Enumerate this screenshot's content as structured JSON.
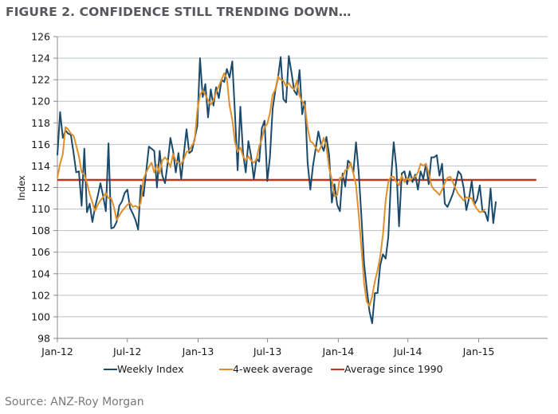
{
  "title": "FIGURE 2. CONFIDENCE STILL TRENDING DOWN…",
  "source": "Source: ANZ-Roy Morgan",
  "colors": {
    "weekly": "#1b4a6b",
    "avg4": "#e0902a",
    "avg1990": "#c0361f",
    "grid": "#b9c3c9",
    "axis": "#888888"
  },
  "chart_data": {
    "type": "line",
    "title": "FIGURE 2. CONFIDENCE STILL TRENDING DOWN…",
    "xlabel": "",
    "ylabel": "Index",
    "ylim": [
      98,
      126
    ],
    "yticks": [
      98,
      100,
      102,
      104,
      106,
      108,
      110,
      112,
      114,
      116,
      118,
      120,
      122,
      124,
      126
    ],
    "xticks": [
      {
        "label": "Jan-12",
        "week": 0
      },
      {
        "label": "Jul-12",
        "week": 26
      },
      {
        "label": "Jan-13",
        "week": 52.3
      },
      {
        "label": "Jul-13",
        "week": 78.1
      },
      {
        "label": "Jan-14",
        "week": 104.4
      },
      {
        "label": "Jul-14",
        "week": 130.3
      },
      {
        "label": "Jan-15",
        "week": 156.6
      }
    ],
    "xlim_weeks": [
      0,
      182
    ],
    "grid": "horizontal",
    "legend_position": "bottom",
    "series": [
      {
        "name": "Weekly Index",
        "key": "weekly",
        "values": [
          115.0,
          119.0,
          116.6,
          117.3,
          117.0,
          116.9,
          115.2,
          113.4,
          113.5,
          110.3,
          115.6,
          109.7,
          110.5,
          108.8,
          110.2,
          111.2,
          112.4,
          111.2,
          109.8,
          116.1,
          108.2,
          108.3,
          108.8,
          110.3,
          110.7,
          111.5,
          111.8,
          110.1,
          109.6,
          109.0,
          108.1,
          112.2,
          111.2,
          113.5,
          115.8,
          115.6,
          115.4,
          112.0,
          115.4,
          113.1,
          112.4,
          114.3,
          116.6,
          115.4,
          113.4,
          115.2,
          112.8,
          115.1,
          117.4,
          115.2,
          115.4,
          116.5,
          117.7,
          124.0,
          120.4,
          121.6,
          118.5,
          121.1,
          119.6,
          121.3,
          120.3,
          122.0,
          121.8,
          123.0,
          122.2,
          123.7,
          118.8,
          113.6,
          119.5,
          115.2,
          113.4,
          116.3,
          114.9,
          112.8,
          114.7,
          114.4,
          117.5,
          118.2,
          112.6,
          114.8,
          119.3,
          121.0,
          122.2,
          124.1,
          120.2,
          119.9,
          124.2,
          122.7,
          121.0,
          120.6,
          122.9,
          118.8,
          120.0,
          114.3,
          111.8,
          114.0,
          115.6,
          117.2,
          116.0,
          115.4,
          116.7,
          115.0,
          110.6,
          112.3,
          110.4,
          109.8,
          113.3,
          112.1,
          114.5,
          114.2,
          113.4,
          116.2,
          113.4,
          109.3,
          104.9,
          102.6,
          100.5,
          99.4,
          102.2,
          102.2,
          104.8,
          105.8,
          105.4,
          107.4,
          112.7,
          116.2,
          113.8,
          108.4,
          113.3,
          113.5,
          112.3,
          113.5,
          112.5,
          113.2,
          111.8,
          113.5,
          112.8,
          114.2,
          112.3,
          114.8,
          114.8,
          115.0,
          113.1,
          114.2,
          110.5,
          110.2,
          110.8,
          111.4,
          112.3,
          113.5,
          113.2,
          112.0,
          109.9,
          111.0,
          112.6,
          110.4,
          110.9,
          112.2,
          109.8,
          109.7,
          108.9,
          111.9,
          108.7,
          110.7
        ],
        "start_week": 0
      },
      {
        "name": "4-week average",
        "key": "avg4",
        "values": [
          112.9,
          114.2,
          115.1,
          117.6,
          117.4,
          117.0,
          116.8,
          115.9,
          114.9,
          113.4,
          113.2,
          112.4,
          111.4,
          110.6,
          109.8,
          110.4,
          110.8,
          111.1,
          111.5,
          111.0,
          111.0,
          110.2,
          109.0,
          109.4,
          109.8,
          110.1,
          110.4,
          110.6,
          110.2,
          110.3,
          110.1,
          110.6,
          112.8,
          113.4,
          113.9,
          114.3,
          113.4,
          114.1,
          113.3,
          114.5,
          114.8,
          114.5,
          113.9,
          115.1,
          114.5,
          114.3,
          114.2,
          114.6,
          115.3,
          115.4,
          115.9,
          116.3,
          119.1,
          120.6,
          121.0,
          120.6,
          120.1,
          119.7,
          120.1,
          120.8,
          121.4,
          122.0,
          122.6,
          122.1,
          119.6,
          118.3,
          116.2,
          115.3,
          115.7,
          114.9,
          114.5,
          114.9,
          114.5,
          114.3,
          114.6,
          115.8,
          116.5,
          117.6,
          117.9,
          118.9,
          120.6,
          121.1,
          122.3,
          122.0,
          121.9,
          121.4,
          121.7,
          121.3,
          121.1,
          121.9,
          120.5,
          120.0,
          119.6,
          117.5,
          116.3,
          116.1,
          115.7,
          115.3,
          115.8,
          116.6,
          115.8,
          113.8,
          112.7,
          111.2,
          111.3,
          112.9,
          112.9,
          113.6,
          113.7,
          114.3,
          113.3,
          112.2,
          109.5,
          106.4,
          103.1,
          101.4,
          101.0,
          101.9,
          103.3,
          104.3,
          105.6,
          107.6,
          110.8,
          112.5,
          113.0,
          113.0,
          112.5,
          112.2,
          113.1,
          112.5,
          112.9,
          112.6,
          112.9,
          113.0,
          113.4,
          114.2,
          114.0,
          114.2,
          113.3,
          112.2,
          111.8,
          111.6,
          111.3,
          111.8,
          112.4,
          112.9,
          113.0,
          112.5,
          111.9,
          111.4,
          111.1,
          110.8,
          111.1,
          111.0,
          111.0,
          110.4,
          110.0,
          109.7,
          109.8,
          110.0
        ],
        "start_week": 0
      },
      {
        "name": "Average since 1990",
        "key": "avg1990",
        "values": [
          112.7,
          112.7
        ],
        "x_weeks": [
          0,
          178
        ]
      }
    ]
  }
}
